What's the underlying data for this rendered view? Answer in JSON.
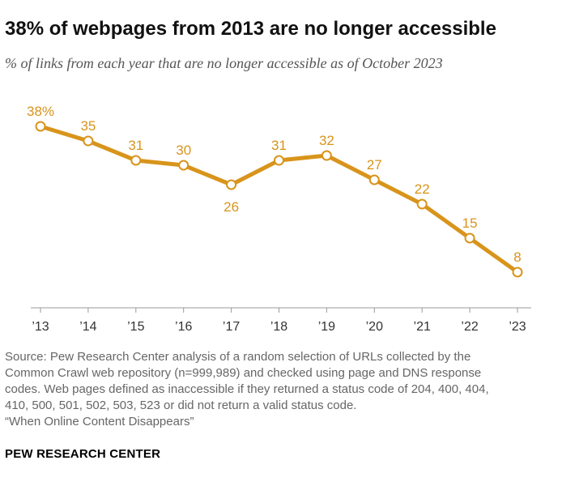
{
  "title": "38% of webpages from 2013 are no longer accessible",
  "subtitle": "% of links from each year that are no longer accessible as of October 2023",
  "chart_data": {
    "type": "line",
    "title": "38% of webpages from 2013 are no longer accessible",
    "subtitle": "% of links from each year that are no longer accessible as of October 2023",
    "categories": [
      "’13",
      "’14",
      "’15",
      "’16",
      "’17",
      "’18",
      "’19",
      "’20",
      "’21",
      "’22",
      "’23"
    ],
    "series": [
      {
        "values": [
          38,
          35,
          31,
          30,
          26,
          31,
          32,
          27,
          22,
          15,
          8
        ],
        "data_labels": [
          "38%",
          "35",
          "31",
          "30",
          "26",
          "31",
          "32",
          "27",
          "22",
          "15",
          "8"
        ],
        "color": "#D8941B"
      }
    ],
    "ylim": [
      0,
      40
    ],
    "grid": false
  },
  "source": {
    "lines": [
      "Source: Pew Research Center analysis of a random selection of URLs collected by the",
      "Common Crawl web repository (n=999,989) and checked using page and DNS response",
      "codes. Web pages defined as inaccessible if they returned a status code of 204, 400, 404,",
      "410, 500, 501, 502, 503, 523 or did not return a valid status code.",
      "“When Online Content Disappears”"
    ]
  },
  "brand": "PEW RESEARCH CENTER"
}
